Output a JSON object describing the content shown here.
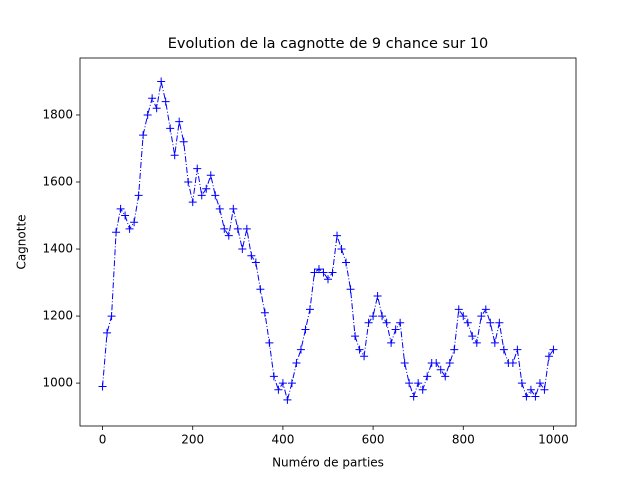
{
  "chart_data": {
    "type": "line",
    "title": "Evolution de la cagnotte de 9 chance sur 10",
    "x_label": "Numéro de parties",
    "y_label": "Cagnotte",
    "x": [
      0,
      10,
      20,
      30,
      40,
      50,
      60,
      70,
      80,
      90,
      100,
      110,
      120,
      130,
      140,
      150,
      160,
      170,
      180,
      190,
      200,
      210,
      220,
      230,
      240,
      250,
      260,
      270,
      280,
      290,
      300,
      310,
      320,
      330,
      340,
      350,
      360,
      370,
      380,
      390,
      400,
      410,
      420,
      430,
      440,
      450,
      460,
      470,
      480,
      490,
      500,
      510,
      520,
      530,
      540,
      550,
      560,
      570,
      580,
      590,
      600,
      610,
      620,
      630,
      640,
      650,
      660,
      670,
      680,
      690,
      700,
      710,
      720,
      730,
      740,
      750,
      760,
      770,
      780,
      790,
      800,
      810,
      820,
      830,
      840,
      850,
      860,
      870,
      880,
      890,
      900,
      910,
      920,
      930,
      940,
      950,
      960,
      970,
      980,
      990,
      1000
    ],
    "values": [
      990,
      1150,
      1200,
      1450,
      1520,
      1500,
      1460,
      1480,
      1560,
      1740,
      1800,
      1850,
      1820,
      1900,
      1840,
      1760,
      1680,
      1780,
      1720,
      1600,
      1540,
      1640,
      1560,
      1580,
      1620,
      1560,
      1520,
      1460,
      1440,
      1520,
      1460,
      1400,
      1460,
      1380,
      1360,
      1280,
      1210,
      1120,
      1020,
      980,
      1000,
      950,
      1000,
      1060,
      1100,
      1160,
      1220,
      1330,
      1340,
      1330,
      1310,
      1330,
      1440,
      1400,
      1360,
      1280,
      1140,
      1100,
      1080,
      1180,
      1200,
      1260,
      1200,
      1180,
      1120,
      1160,
      1180,
      1060,
      1000,
      960,
      1000,
      980,
      1020,
      1060,
      1060,
      1040,
      1020,
      1060,
      1100,
      1220,
      1200,
      1180,
      1140,
      1120,
      1200,
      1220,
      1180,
      1120,
      1180,
      1100,
      1060,
      1060,
      1100,
      1000,
      960,
      980,
      960,
      1000,
      980,
      1080,
      1100
    ],
    "color": "#0000ff",
    "xlim": [
      -50,
      1050
    ],
    "ylim": [
      872,
      1970
    ],
    "xticks": [
      0,
      200,
      400,
      600,
      800,
      1000
    ],
    "yticks": [
      1000,
      1200,
      1400,
      1600,
      1800
    ]
  }
}
